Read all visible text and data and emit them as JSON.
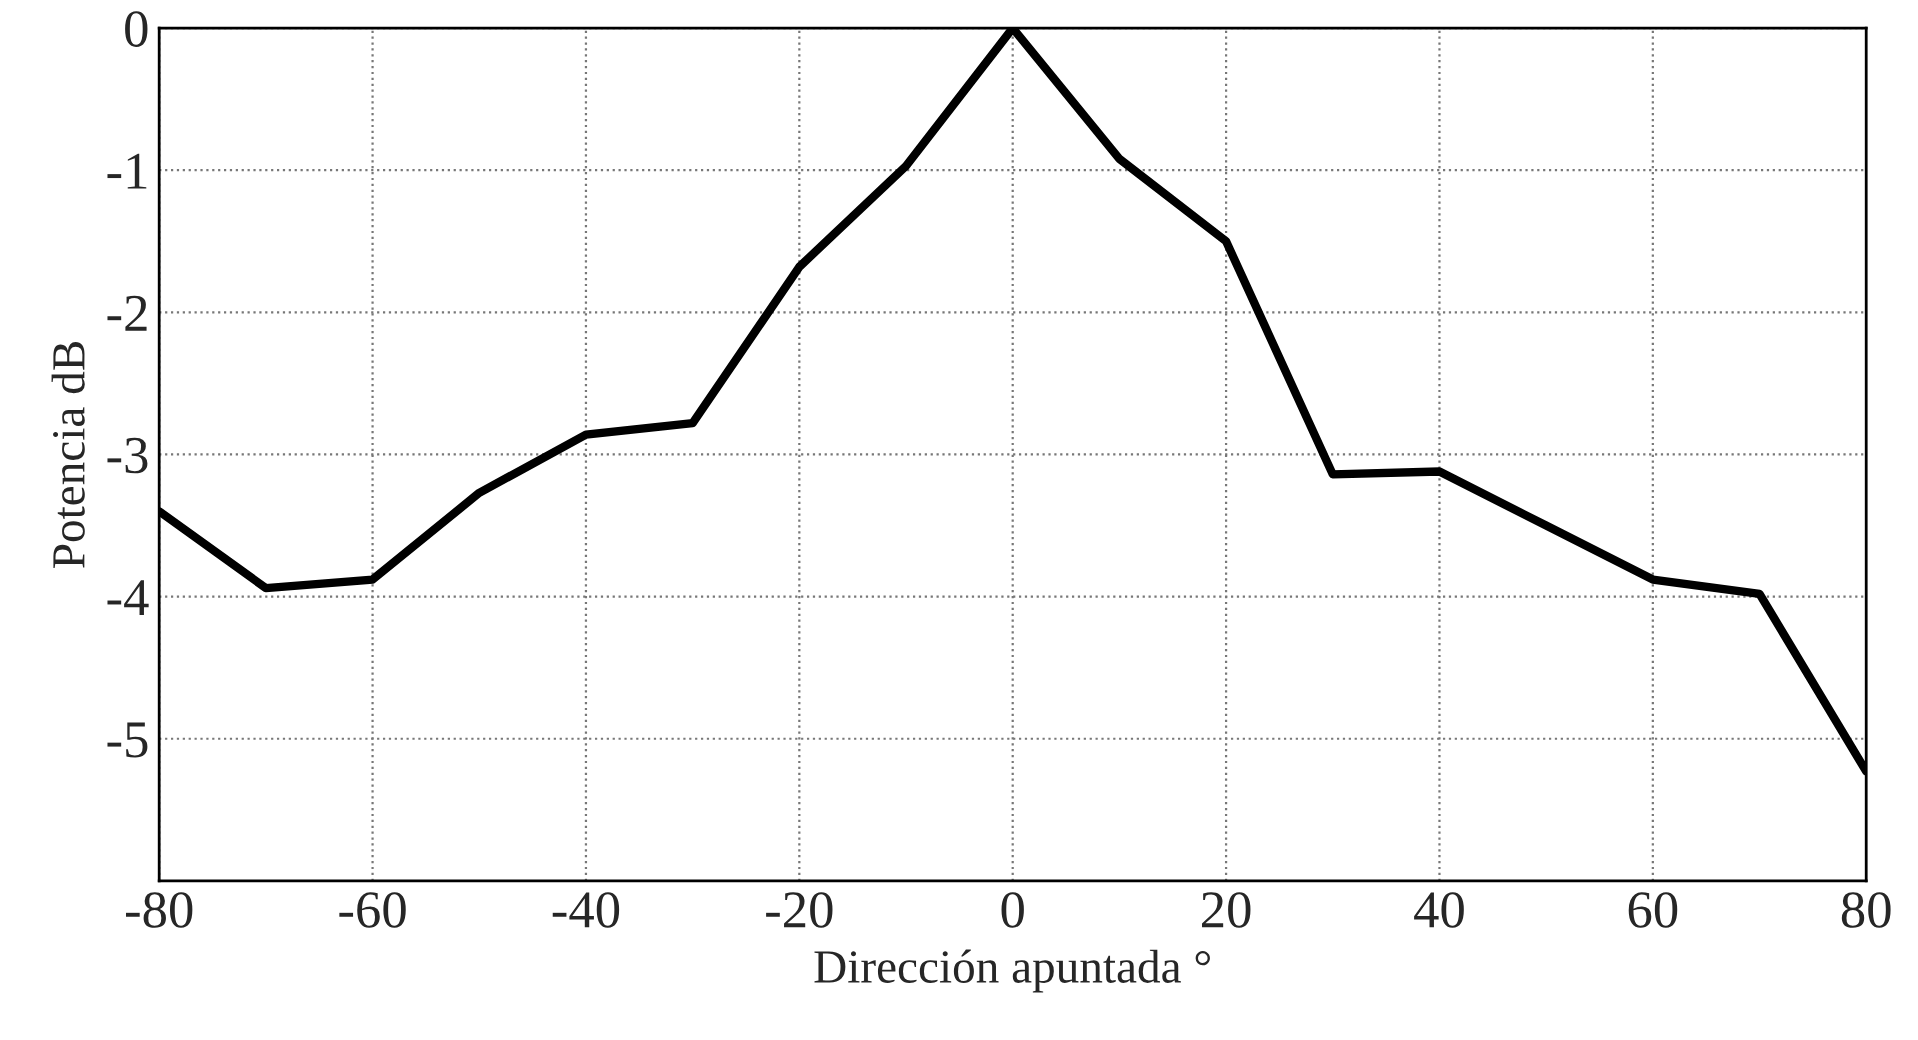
{
  "chart_data": {
    "type": "line",
    "xlabel": "Dirección apuntada °",
    "ylabel": "Potencia dB",
    "x": [
      -80,
      -70,
      -60,
      -50,
      -40,
      -30,
      -20,
      -10,
      0,
      10,
      20,
      30,
      40,
      50,
      60,
      70,
      80
    ],
    "series": [
      {
        "color": "#000000",
        "values": [
          -3.4,
          -3.94,
          -3.88,
          -3.27,
          -2.86,
          -2.78,
          -1.68,
          -0.97,
          0,
          -0.92,
          -1.5,
          -3.14,
          -3.12,
          -3.5,
          -3.88,
          -3.98,
          -5.23
        ]
      }
    ],
    "xlim": [
      -80,
      80
    ],
    "xticks": [
      -80,
      -60,
      -40,
      -20,
      0,
      20,
      40,
      60,
      80
    ],
    "ylim": [
      -6,
      0
    ],
    "yticks": [
      -5,
      -4,
      -3,
      -2,
      -1,
      0
    ],
    "grid": true,
    "line_style": "solid",
    "marker": "none"
  }
}
